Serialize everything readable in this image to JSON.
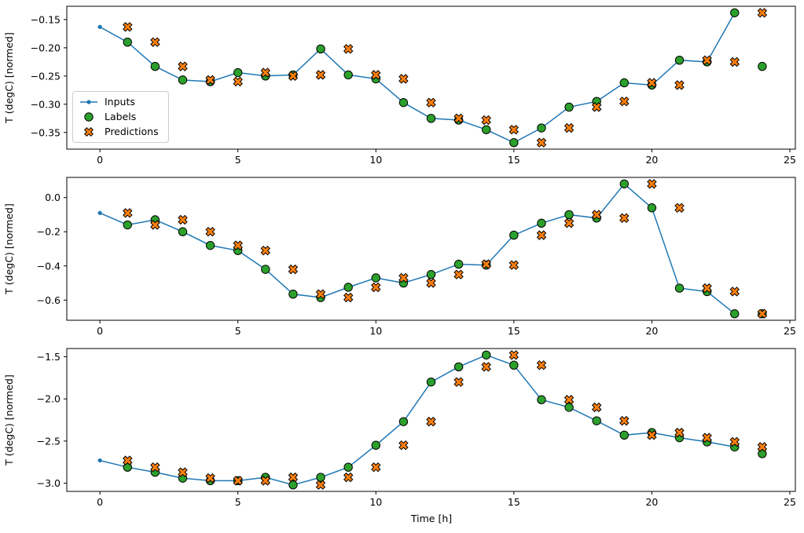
{
  "figure": {
    "xlabel": "Time [h]",
    "background": "#ffffff",
    "legend": {
      "position": "upper-left-of-first-panel",
      "items": [
        {
          "label": "Inputs",
          "marker": "line-with-dot",
          "color": "#1f77b4"
        },
        {
          "label": "Labels",
          "marker": "filled-circle-black-edge",
          "color": "#2ca02c"
        },
        {
          "label": "Predictions",
          "marker": "filled-X-black-edge",
          "color": "#ff7f0e"
        }
      ]
    }
  },
  "chart_data": [
    {
      "type": "line",
      "title": "",
      "xlabel": "",
      "ylabel": "T (degC) [normed]",
      "xlim": [
        -1.2,
        25.2
      ],
      "ylim": [
        -0.3795,
        -0.1265
      ],
      "grid": false,
      "xticks": [
        0,
        5,
        10,
        15,
        20,
        25
      ],
      "xtick_labels": [
        "0",
        "5",
        "10",
        "15",
        "20",
        "25"
      ],
      "yticks": [
        -0.15,
        -0.2,
        -0.25,
        -0.3,
        -0.35
      ],
      "ytick_labels": [
        "−0.15",
        "−0.20",
        "−0.25",
        "−0.30",
        "−0.35"
      ],
      "series": [
        {
          "name": "Inputs",
          "type": "line",
          "marker": "dot",
          "color": "#1f77b4",
          "x": [
            0,
            1,
            2,
            3,
            4,
            5,
            6,
            7,
            8,
            9,
            10,
            11,
            12,
            13,
            14,
            15,
            16,
            17,
            18,
            19,
            20,
            21,
            22,
            23
          ],
          "y": [
            -0.163,
            -0.19,
            -0.233,
            -0.257,
            -0.26,
            -0.244,
            -0.25,
            -0.248,
            -0.202,
            -0.248,
            -0.255,
            -0.297,
            -0.325,
            -0.328,
            -0.345,
            -0.368,
            -0.342,
            -0.305,
            -0.295,
            -0.262,
            -0.266,
            -0.222,
            -0.225,
            -0.138
          ]
        },
        {
          "name": "Labels",
          "type": "scatter",
          "marker": "circle",
          "color": "#2ca02c",
          "x": [
            1,
            2,
            3,
            4,
            5,
            6,
            7,
            8,
            9,
            10,
            11,
            12,
            13,
            14,
            15,
            16,
            17,
            18,
            19,
            20,
            21,
            22,
            23,
            24
          ],
          "y": [
            -0.19,
            -0.233,
            -0.257,
            -0.26,
            -0.244,
            -0.25,
            -0.248,
            -0.202,
            -0.248,
            -0.255,
            -0.297,
            -0.325,
            -0.328,
            -0.345,
            -0.368,
            -0.342,
            -0.305,
            -0.295,
            -0.262,
            -0.266,
            -0.222,
            -0.225,
            -0.138,
            -0.233
          ]
        },
        {
          "name": "Predictions",
          "type": "scatter",
          "marker": "X",
          "color": "#ff7f0e",
          "x": [
            1,
            2,
            3,
            4,
            5,
            6,
            7,
            8,
            9,
            10,
            11,
            12,
            13,
            14,
            15,
            16,
            17,
            18,
            19,
            20,
            21,
            22,
            23,
            24
          ],
          "y": [
            -0.163,
            -0.19,
            -0.233,
            -0.257,
            -0.26,
            -0.244,
            -0.25,
            -0.248,
            -0.202,
            -0.248,
            -0.255,
            -0.297,
            -0.325,
            -0.328,
            -0.345,
            -0.368,
            -0.342,
            -0.305,
            -0.295,
            -0.262,
            -0.266,
            -0.222,
            -0.225,
            -0.138
          ]
        }
      ]
    },
    {
      "type": "line",
      "title": "",
      "xlabel": "",
      "ylabel": "T (degC) [normed]",
      "xlim": [
        -1.2,
        25.2
      ],
      "ylim": [
        -0.718,
        0.118
      ],
      "grid": false,
      "xticks": [
        0,
        5,
        10,
        15,
        20,
        25
      ],
      "xtick_labels": [
        "0",
        "5",
        "10",
        "15",
        "20",
        "25"
      ],
      "yticks": [
        0.0,
        -0.2,
        -0.4,
        -0.6
      ],
      "ytick_labels": [
        "0.0",
        "−0.2",
        "−0.4",
        "−0.6"
      ],
      "series": [
        {
          "name": "Inputs",
          "type": "line",
          "marker": "dot",
          "color": "#1f77b4",
          "x": [
            0,
            1,
            2,
            3,
            4,
            5,
            6,
            7,
            8,
            9,
            10,
            11,
            12,
            13,
            14,
            15,
            16,
            17,
            18,
            19,
            20,
            21,
            22,
            23
          ],
          "y": [
            -0.09,
            -0.16,
            -0.13,
            -0.2,
            -0.28,
            -0.31,
            -0.42,
            -0.565,
            -0.585,
            -0.525,
            -0.47,
            -0.5,
            -0.45,
            -0.39,
            -0.395,
            -0.22,
            -0.15,
            -0.1,
            -0.12,
            0.08,
            -0.06,
            -0.53,
            -0.55,
            -0.68
          ]
        },
        {
          "name": "Labels",
          "type": "scatter",
          "marker": "circle",
          "color": "#2ca02c",
          "x": [
            1,
            2,
            3,
            4,
            5,
            6,
            7,
            8,
            9,
            10,
            11,
            12,
            13,
            14,
            15,
            16,
            17,
            18,
            19,
            20,
            21,
            22,
            23,
            24
          ],
          "y": [
            -0.16,
            -0.13,
            -0.2,
            -0.28,
            -0.31,
            -0.42,
            -0.565,
            -0.585,
            -0.525,
            -0.47,
            -0.5,
            -0.45,
            -0.39,
            -0.395,
            -0.22,
            -0.15,
            -0.1,
            -0.12,
            0.08,
            -0.06,
            -0.53,
            -0.55,
            -0.68,
            -0.68
          ]
        },
        {
          "name": "Predictions",
          "type": "scatter",
          "marker": "X",
          "color": "#ff7f0e",
          "x": [
            1,
            2,
            3,
            4,
            5,
            6,
            7,
            8,
            9,
            10,
            11,
            12,
            13,
            14,
            15,
            16,
            17,
            18,
            19,
            20,
            21,
            22,
            23,
            24
          ],
          "y": [
            -0.09,
            -0.16,
            -0.13,
            -0.2,
            -0.28,
            -0.31,
            -0.42,
            -0.565,
            -0.585,
            -0.525,
            -0.47,
            -0.5,
            -0.45,
            -0.39,
            -0.395,
            -0.22,
            -0.15,
            -0.1,
            -0.12,
            0.08,
            -0.06,
            -0.53,
            -0.55,
            -0.68
          ]
        }
      ]
    },
    {
      "type": "line",
      "title": "",
      "xlabel": "Time [h]",
      "ylabel": "T (degC) [normed]",
      "xlim": [
        -1.2,
        25.2
      ],
      "ylim": [
        -3.097,
        -1.403
      ],
      "grid": false,
      "xticks": [
        0,
        5,
        10,
        15,
        20,
        25
      ],
      "xtick_labels": [
        "0",
        "5",
        "10",
        "15",
        "20",
        "25"
      ],
      "yticks": [
        -1.5,
        -2.0,
        -2.5,
        -3.0
      ],
      "ytick_labels": [
        "−1.5",
        "−2.0",
        "−2.5",
        "−3.0"
      ],
      "series": [
        {
          "name": "Inputs",
          "type": "line",
          "marker": "dot",
          "color": "#1f77b4",
          "x": [
            0,
            1,
            2,
            3,
            4,
            5,
            6,
            7,
            8,
            9,
            10,
            11,
            12,
            13,
            14,
            15,
            16,
            17,
            18,
            19,
            20,
            21,
            22,
            23
          ],
          "y": [
            -2.73,
            -2.81,
            -2.87,
            -2.94,
            -2.97,
            -2.97,
            -2.93,
            -3.02,
            -2.93,
            -2.81,
            -2.55,
            -2.27,
            -1.8,
            -1.62,
            -1.48,
            -1.6,
            -2.01,
            -2.1,
            -2.26,
            -2.43,
            -2.4,
            -2.46,
            -2.51,
            -2.57
          ]
        },
        {
          "name": "Labels",
          "type": "scatter",
          "marker": "circle",
          "color": "#2ca02c",
          "x": [
            1,
            2,
            3,
            4,
            5,
            6,
            7,
            8,
            9,
            10,
            11,
            12,
            13,
            14,
            15,
            16,
            17,
            18,
            19,
            20,
            21,
            22,
            23,
            24
          ],
          "y": [
            -2.81,
            -2.87,
            -2.94,
            -2.97,
            -2.97,
            -2.93,
            -3.02,
            -2.93,
            -2.81,
            -2.55,
            -2.27,
            -1.8,
            -1.62,
            -1.48,
            -1.6,
            -2.01,
            -2.1,
            -2.26,
            -2.43,
            -2.4,
            -2.46,
            -2.51,
            -2.57,
            -2.65
          ]
        },
        {
          "name": "Predictions",
          "type": "scatter",
          "marker": "X",
          "color": "#ff7f0e",
          "x": [
            1,
            2,
            3,
            4,
            5,
            6,
            7,
            8,
            9,
            10,
            11,
            12,
            13,
            14,
            15,
            16,
            17,
            18,
            19,
            20,
            21,
            22,
            23,
            24
          ],
          "y": [
            -2.73,
            -2.81,
            -2.87,
            -2.94,
            -2.97,
            -2.97,
            -2.93,
            -3.02,
            -2.93,
            -2.81,
            -2.55,
            -2.27,
            -1.8,
            -1.62,
            -1.48,
            -1.6,
            -2.01,
            -2.1,
            -2.26,
            -2.43,
            -2.4,
            -2.46,
            -2.51,
            -2.57
          ]
        }
      ]
    }
  ]
}
